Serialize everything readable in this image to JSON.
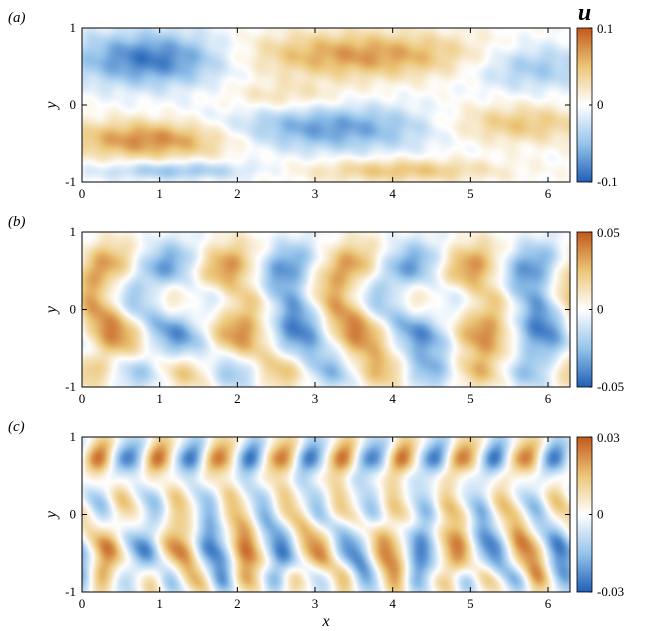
{
  "figure": {
    "variable_symbol": "u",
    "xlabel": "x",
    "ylabel": "y",
    "colormap": {
      "negative_color": "#1f5fb6",
      "mid_color": "#ffffff",
      "positive_color": "#c2591b"
    }
  },
  "chart_data": [
    {
      "type": "heatmap",
      "panel_label": "(a)",
      "xlabel": "",
      "ylabel": "y",
      "xlim": [
        0,
        6.283
      ],
      "ylim": [
        -1,
        1
      ],
      "x_ticks": [
        "0",
        "1",
        "2",
        "3",
        "4",
        "5",
        "6"
      ],
      "y_ticks": [
        "-1",
        "0",
        "1"
      ],
      "colorbar": {
        "title": "u",
        "min": -0.1,
        "max": 0.1,
        "ticks": [
          "0.1",
          "0",
          "-0.1"
        ]
      },
      "structures": [
        {
          "x": 0.9,
          "y": 0.6,
          "sx": 1.0,
          "sy": 0.35,
          "amp": -0.09
        },
        {
          "x": 3.6,
          "y": 0.65,
          "sx": 1.6,
          "sy": 0.3,
          "amp": 0.07
        },
        {
          "x": 5.8,
          "y": 0.5,
          "sx": 0.8,
          "sy": 0.3,
          "amp": -0.05
        },
        {
          "x": 0.9,
          "y": -0.45,
          "sx": 1.1,
          "sy": 0.25,
          "amp": 0.08
        },
        {
          "x": 3.2,
          "y": -0.3,
          "sx": 1.4,
          "sy": 0.3,
          "amp": -0.07
        },
        {
          "x": 5.6,
          "y": -0.25,
          "sx": 1.0,
          "sy": 0.25,
          "amp": 0.05
        },
        {
          "x": 4.1,
          "y": -0.85,
          "sx": 1.2,
          "sy": 0.15,
          "amp": 0.05
        },
        {
          "x": 1.2,
          "y": -0.85,
          "sx": 1.0,
          "sy": 0.12,
          "amp": -0.05
        },
        {
          "x": 2.6,
          "y": 0.1,
          "sx": 0.8,
          "sy": 0.2,
          "amp": 0.03
        }
      ],
      "waves": []
    },
    {
      "type": "heatmap",
      "panel_label": "(b)",
      "xlabel": "",
      "ylabel": "y",
      "xlim": [
        0,
        6.283
      ],
      "ylim": [
        -1,
        1
      ],
      "x_ticks": [
        "0",
        "1",
        "2",
        "3",
        "4",
        "5",
        "6"
      ],
      "y_ticks": [
        "-1",
        "0",
        "1"
      ],
      "colorbar": {
        "title": "",
        "min": -0.05,
        "max": 0.05,
        "ticks": [
          "0.05",
          "0",
          "-0.05"
        ]
      },
      "structures": [],
      "waves": [
        {
          "kx": 4,
          "ky": 4.7,
          "amp": 0.04,
          "phase": 0.3,
          "tilt": 0.35,
          "yc": -0.3,
          "sy": 0.35
        },
        {
          "kx": 4,
          "ky": 6.3,
          "amp": 0.035,
          "phase": 1.1,
          "tilt": -0.3,
          "yc": 0.55,
          "sy": 0.35
        },
        {
          "kx": 5,
          "ky": 9.4,
          "amp": 0.025,
          "phase": 2.0,
          "tilt": 0.2,
          "yc": -0.8,
          "sy": 0.25
        },
        {
          "kx": 6,
          "ky": 7.9,
          "amp": 0.02,
          "phase": 0.7,
          "tilt": 0.4,
          "yc": 0.1,
          "sy": 0.3
        }
      ]
    },
    {
      "type": "heatmap",
      "panel_label": "(c)",
      "xlabel": "x",
      "ylabel": "y",
      "xlim": [
        0,
        6.283
      ],
      "ylim": [
        -1,
        1
      ],
      "x_ticks": [
        "0",
        "1",
        "2",
        "3",
        "4",
        "5",
        "6"
      ],
      "y_ticks": [
        "-1",
        "0",
        "1"
      ],
      "colorbar": {
        "title": "",
        "min": -0.03,
        "max": 0.03,
        "ticks": [
          "0.03",
          "0",
          "-0.03"
        ]
      },
      "structures": [],
      "waves": [
        {
          "kx": 7,
          "ky": 9.4,
          "amp": 0.025,
          "phase": 0.2,
          "tilt": 0.3,
          "yc": -0.45,
          "sy": 0.4
        },
        {
          "kx": 8,
          "ky": 12.6,
          "amp": 0.025,
          "phase": 1.4,
          "tilt": -0.25,
          "yc": 0.75,
          "sy": 0.3
        },
        {
          "kx": 9,
          "ky": 7.9,
          "amp": 0.015,
          "phase": 2.4,
          "tilt": 0.35,
          "yc": 0.1,
          "sy": 0.35
        },
        {
          "kx": 10,
          "ky": 14.1,
          "amp": 0.015,
          "phase": 0.9,
          "tilt": 0.2,
          "yc": -0.85,
          "sy": 0.25
        }
      ]
    }
  ]
}
